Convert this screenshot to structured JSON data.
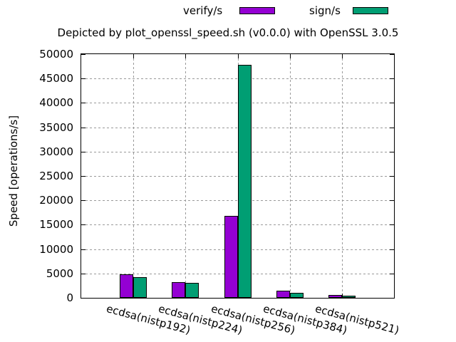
{
  "title": "Depicted by plot_openssl_speed.sh (v0.0.0) with OpenSSL 3.0.5",
  "chart_data": {
    "type": "bar",
    "title": "Depicted by plot_openssl_speed.sh (v0.0.0) with OpenSSL 3.0.5",
    "categories": [
      "ecdsa(nistp192)",
      "ecdsa(nistp224)",
      "ecdsa(nistp256)",
      "ecdsa(nistp384)",
      "ecdsa(nistp521)"
    ],
    "series": [
      {
        "name": "verify/s",
        "color": "#9400d3",
        "values": [
          4800,
          3280,
          16750,
          1400,
          580
        ]
      },
      {
        "name": "sign/s",
        "color": "#009e73",
        "values": [
          4290,
          3060,
          47800,
          1070,
          390
        ]
      }
    ],
    "xlabel": "",
    "ylabel": "Speed [operations/s]",
    "ylim": [
      0,
      50000
    ],
    "ytick_step": 5000,
    "grid": true,
    "grid_style": "dashed",
    "legend_position": "top-center-outside",
    "background": "#ffffff",
    "bar_border_color": "#000000"
  }
}
